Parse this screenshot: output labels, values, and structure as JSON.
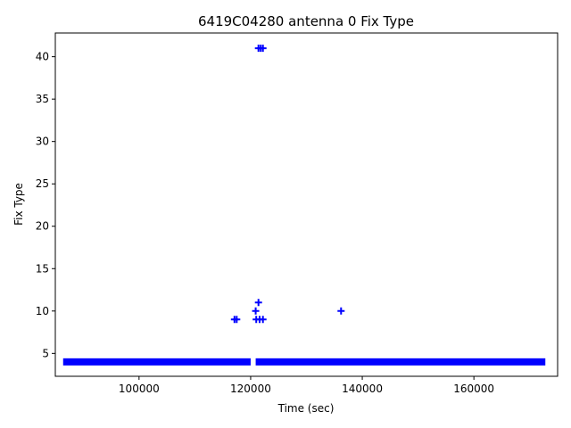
{
  "chart_data": {
    "type": "scatter",
    "title": "6419C04280 antenna 0 Fix Type",
    "xlabel": "Time (sec)",
    "ylabel": "Fix Type",
    "xlim": [
      85000,
      175000
    ],
    "ylim": [
      2.3,
      42.8
    ],
    "xticks": [
      100000,
      120000,
      140000,
      160000
    ],
    "xtick_labels": [
      "100000",
      "120000",
      "140000",
      "160000"
    ],
    "yticks": [
      5,
      10,
      15,
      20,
      25,
      30,
      35,
      40
    ],
    "ytick_labels": [
      "5",
      "10",
      "15",
      "20",
      "25",
      "30",
      "35",
      "40"
    ],
    "grid": false,
    "marker": "+",
    "marker_color": "#0000ff",
    "dense_segments": [
      {
        "y": 4,
        "x_start": 86400,
        "x_end": 120000
      },
      {
        "y": 4,
        "x_start": 120900,
        "x_end": 172800
      }
    ],
    "points": [
      {
        "x": 121400,
        "y": 41
      },
      {
        "x": 121800,
        "y": 41
      },
      {
        "x": 122200,
        "y": 41
      },
      {
        "x": 121400,
        "y": 11
      },
      {
        "x": 120900,
        "y": 10
      },
      {
        "x": 136200,
        "y": 10
      },
      {
        "x": 117100,
        "y": 9
      },
      {
        "x": 117500,
        "y": 9
      },
      {
        "x": 121000,
        "y": 9
      },
      {
        "x": 121600,
        "y": 9
      },
      {
        "x": 122200,
        "y": 9
      }
    ]
  }
}
